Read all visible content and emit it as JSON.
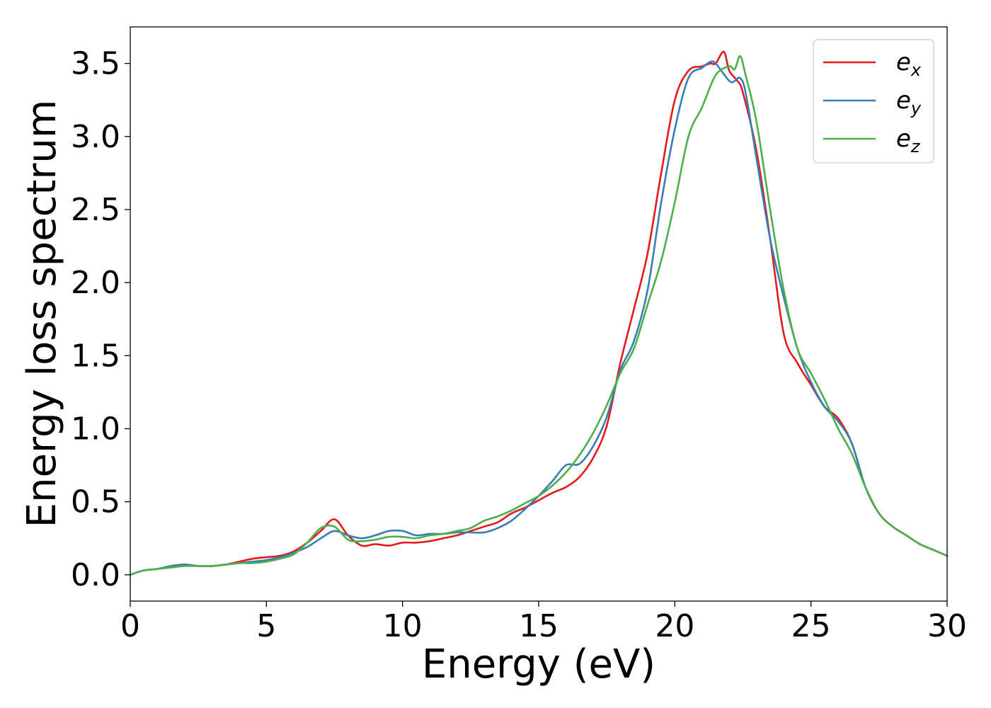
{
  "chart_data": {
    "type": "line",
    "title": "",
    "xlabel": "Energy (eV)",
    "ylabel": "Energy loss spectrum",
    "xlim": [
      0,
      30
    ],
    "ylim": [
      -0.18,
      3.75
    ],
    "xticks": [
      0,
      5,
      10,
      15,
      20,
      25,
      30
    ],
    "xtick_labels": [
      "0",
      "5",
      "10",
      "15",
      "20",
      "25",
      "30"
    ],
    "yticks": [
      0.0,
      0.5,
      1.0,
      1.5,
      2.0,
      2.5,
      3.0,
      3.5
    ],
    "ytick_labels": [
      "0.0",
      "0.5",
      "1.0",
      "1.5",
      "2.0",
      "2.5",
      "3.0",
      "3.5"
    ],
    "grid": false,
    "legend_position": "top-right",
    "series": [
      {
        "name": "e",
        "sub": "x",
        "color": "#e41a1c",
        "x": [
          0,
          0.5,
          1,
          1.5,
          2,
          2.5,
          3,
          3.5,
          4,
          4.5,
          5,
          5.5,
          6,
          6.5,
          7,
          7.5,
          8,
          8.5,
          9,
          9.5,
          10,
          10.5,
          11,
          11.5,
          12,
          12.5,
          13,
          13.5,
          14,
          14.5,
          15,
          15.5,
          16,
          16.5,
          17,
          17.5,
          18,
          18.5,
          19,
          19.5,
          20,
          20.5,
          21,
          21.3,
          21.5,
          21.8,
          22,
          22.3,
          22.5,
          23,
          23.5,
          24,
          24.5,
          25,
          25.5,
          26,
          26.5,
          27,
          27.5,
          28,
          28.5,
          29,
          29.5,
          30
        ],
        "y": [
          0,
          0.03,
          0.04,
          0.06,
          0.07,
          0.06,
          0.06,
          0.07,
          0.09,
          0.11,
          0.12,
          0.13,
          0.16,
          0.22,
          0.3,
          0.38,
          0.27,
          0.2,
          0.21,
          0.2,
          0.22,
          0.22,
          0.23,
          0.25,
          0.27,
          0.3,
          0.33,
          0.36,
          0.42,
          0.46,
          0.51,
          0.56,
          0.6,
          0.67,
          0.8,
          1.02,
          1.45,
          1.82,
          2.2,
          2.75,
          3.25,
          3.45,
          3.48,
          3.5,
          3.5,
          3.58,
          3.45,
          3.38,
          3.3,
          2.9,
          2.3,
          1.65,
          1.45,
          1.3,
          1.15,
          1.07,
          0.9,
          0.6,
          0.42,
          0.33,
          0.27,
          0.21,
          0.17,
          0.13
        ]
      },
      {
        "name": "e",
        "sub": "y",
        "color": "#377eb8",
        "x": [
          0,
          0.5,
          1,
          1.5,
          2,
          2.5,
          3,
          3.5,
          4,
          4.5,
          5,
          5.5,
          6,
          6.5,
          7,
          7.5,
          8,
          8.5,
          9,
          9.5,
          10,
          10.5,
          11,
          11.5,
          12,
          12.5,
          13,
          13.5,
          14,
          14.5,
          15,
          15.5,
          16,
          16.5,
          17,
          17.5,
          18,
          18.5,
          19,
          19.5,
          20,
          20.5,
          21,
          21.3,
          21.5,
          22,
          22.2,
          22.4,
          22.6,
          23,
          23.5,
          24,
          24.5,
          25,
          25.5,
          26,
          26.5,
          27,
          27.5,
          28,
          28.5,
          29,
          29.5,
          30
        ],
        "y": [
          0,
          0.03,
          0.04,
          0.06,
          0.07,
          0.06,
          0.06,
          0.07,
          0.08,
          0.09,
          0.1,
          0.12,
          0.15,
          0.19,
          0.25,
          0.3,
          0.27,
          0.25,
          0.27,
          0.3,
          0.3,
          0.27,
          0.28,
          0.28,
          0.29,
          0.29,
          0.29,
          0.32,
          0.37,
          0.45,
          0.54,
          0.64,
          0.75,
          0.76,
          0.88,
          1.08,
          1.4,
          1.6,
          1.95,
          2.55,
          3.05,
          3.4,
          3.47,
          3.51,
          3.5,
          3.38,
          3.38,
          3.4,
          3.3,
          2.85,
          2.3,
          1.9,
          1.55,
          1.32,
          1.15,
          1.05,
          0.9,
          0.6,
          0.42,
          0.33,
          0.27,
          0.21,
          0.17,
          0.13
        ]
      },
      {
        "name": "e",
        "sub": "z",
        "color": "#4daf4a",
        "x": [
          0,
          0.5,
          1,
          1.5,
          2,
          2.5,
          3,
          3.5,
          4,
          4.5,
          5,
          5.5,
          6,
          6.5,
          7,
          7.5,
          8,
          8.5,
          9,
          9.5,
          10,
          10.5,
          11,
          11.5,
          12,
          12.5,
          13,
          13.5,
          14,
          14.5,
          15,
          15.5,
          16,
          16.5,
          17,
          17.5,
          18,
          18.5,
          19,
          19.5,
          20,
          20.5,
          21,
          21.5,
          22,
          22.2,
          22.4,
          22.6,
          23,
          23.5,
          24,
          24.5,
          25,
          25.5,
          26,
          26.5,
          27,
          27.5,
          28,
          28.5,
          29,
          29.5,
          30
        ],
        "y": [
          0,
          0.03,
          0.04,
          0.05,
          0.06,
          0.06,
          0.06,
          0.07,
          0.08,
          0.08,
          0.09,
          0.11,
          0.14,
          0.22,
          0.32,
          0.33,
          0.24,
          0.23,
          0.24,
          0.26,
          0.26,
          0.25,
          0.27,
          0.28,
          0.3,
          0.32,
          0.37,
          0.4,
          0.44,
          0.49,
          0.54,
          0.61,
          0.7,
          0.82,
          0.97,
          1.16,
          1.38,
          1.55,
          1.85,
          2.15,
          2.55,
          3.0,
          3.2,
          3.42,
          3.48,
          3.46,
          3.55,
          3.42,
          3.1,
          2.5,
          1.95,
          1.55,
          1.38,
          1.2,
          1.0,
          0.83,
          0.6,
          0.42,
          0.33,
          0.27,
          0.21,
          0.17,
          0.13
        ]
      }
    ]
  }
}
